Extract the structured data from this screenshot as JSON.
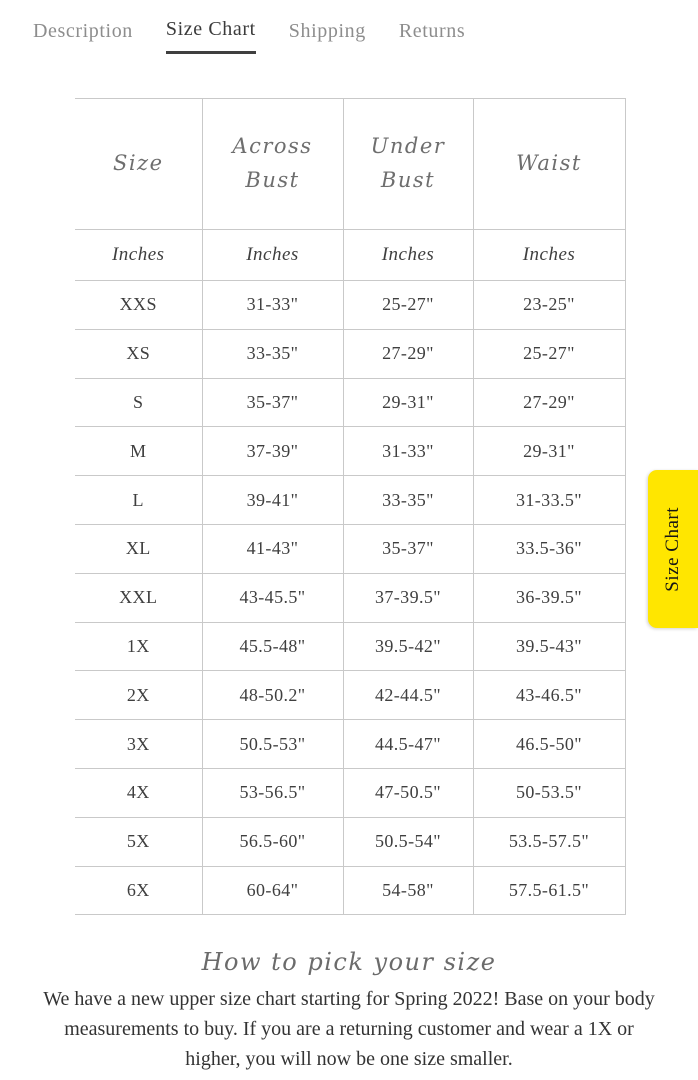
{
  "tabs": {
    "items": [
      {
        "label": "Description",
        "active": false
      },
      {
        "label": "Size Chart",
        "active": true
      },
      {
        "label": "Shipping",
        "active": false
      },
      {
        "label": "Returns",
        "active": false
      }
    ]
  },
  "size_table": {
    "columns": [
      "Size",
      "Across Bust",
      "Under Bust",
      "Waist"
    ],
    "units": [
      "Inches",
      "Inches",
      "Inches",
      "Inches"
    ],
    "rows": [
      [
        "XXS",
        "31-33\"",
        "25-27\"",
        "23-25\""
      ],
      [
        "XS",
        "33-35\"",
        "27-29\"",
        "25-27\""
      ],
      [
        "S",
        "35-37\"",
        "29-31\"",
        "27-29\""
      ],
      [
        "M",
        "37-39\"",
        "31-33\"",
        "29-31\""
      ],
      [
        "L",
        "39-41\"",
        "33-35\"",
        "31-33.5\""
      ],
      [
        "XL",
        "41-43\"",
        "35-37\"",
        "33.5-36\""
      ],
      [
        "XXL",
        "43-45.5\"",
        "37-39.5\"",
        "36-39.5\""
      ],
      [
        "1X",
        "45.5-48\"",
        "39.5-42\"",
        "39.5-43\""
      ],
      [
        "2X",
        "48-50.2\"",
        "42-44.5\"",
        "43-46.5\""
      ],
      [
        "3X",
        "50.5-53\"",
        "44.5-47\"",
        "46.5-50\""
      ],
      [
        "4X",
        "53-56.5\"",
        "47-50.5\"",
        "50-53.5\""
      ],
      [
        "5X",
        "56.5-60\"",
        "50.5-54\"",
        "53.5-57.5\""
      ],
      [
        "6X",
        "60-64\"",
        "54-58\"",
        "57.5-61.5\""
      ]
    ]
  },
  "side_tab": {
    "label": "Size Chart",
    "background": "#ffe600"
  },
  "footer": {
    "heading": "How to pick your size",
    "body": "We have a new upper size chart starting for Spring 2022! Base on your body measurements to buy. If you are a returning customer and wear a 1X or higher, you will now be one size smaller."
  },
  "colors": {
    "accent_yellow": "#ffe600",
    "active_tab_text": "#3b3b3b",
    "inactive_tab_text": "#8d8d8d",
    "table_border": "#c9c9c9",
    "table_text": "#3f3f3f"
  }
}
